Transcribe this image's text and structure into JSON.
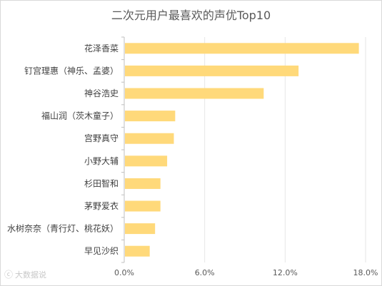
{
  "chart_data": {
    "type": "bar",
    "orientation": "horizontal",
    "title": "二次元用户最喜欢的声优Top10",
    "categories": [
      "花泽香菜",
      "钉宫理惠（神乐、孟婆）",
      "神谷浩史",
      "福山润（茨木童子）",
      "宫野真守",
      "小野大辅",
      "杉田智和",
      "茅野爱衣",
      "水树奈奈（青行灯、桃花妖）",
      "早见沙织"
    ],
    "values": [
      17.5,
      13.0,
      10.4,
      3.8,
      3.7,
      3.2,
      2.7,
      2.7,
      2.3,
      1.9
    ],
    "xlim": [
      0,
      18
    ],
    "xticks": [
      "0.0%",
      "6.0%",
      "12.0%",
      "18.0%"
    ],
    "bar_color": "#ffd97a",
    "grid": true
  },
  "watermark": {
    "text": "大数据说"
  }
}
